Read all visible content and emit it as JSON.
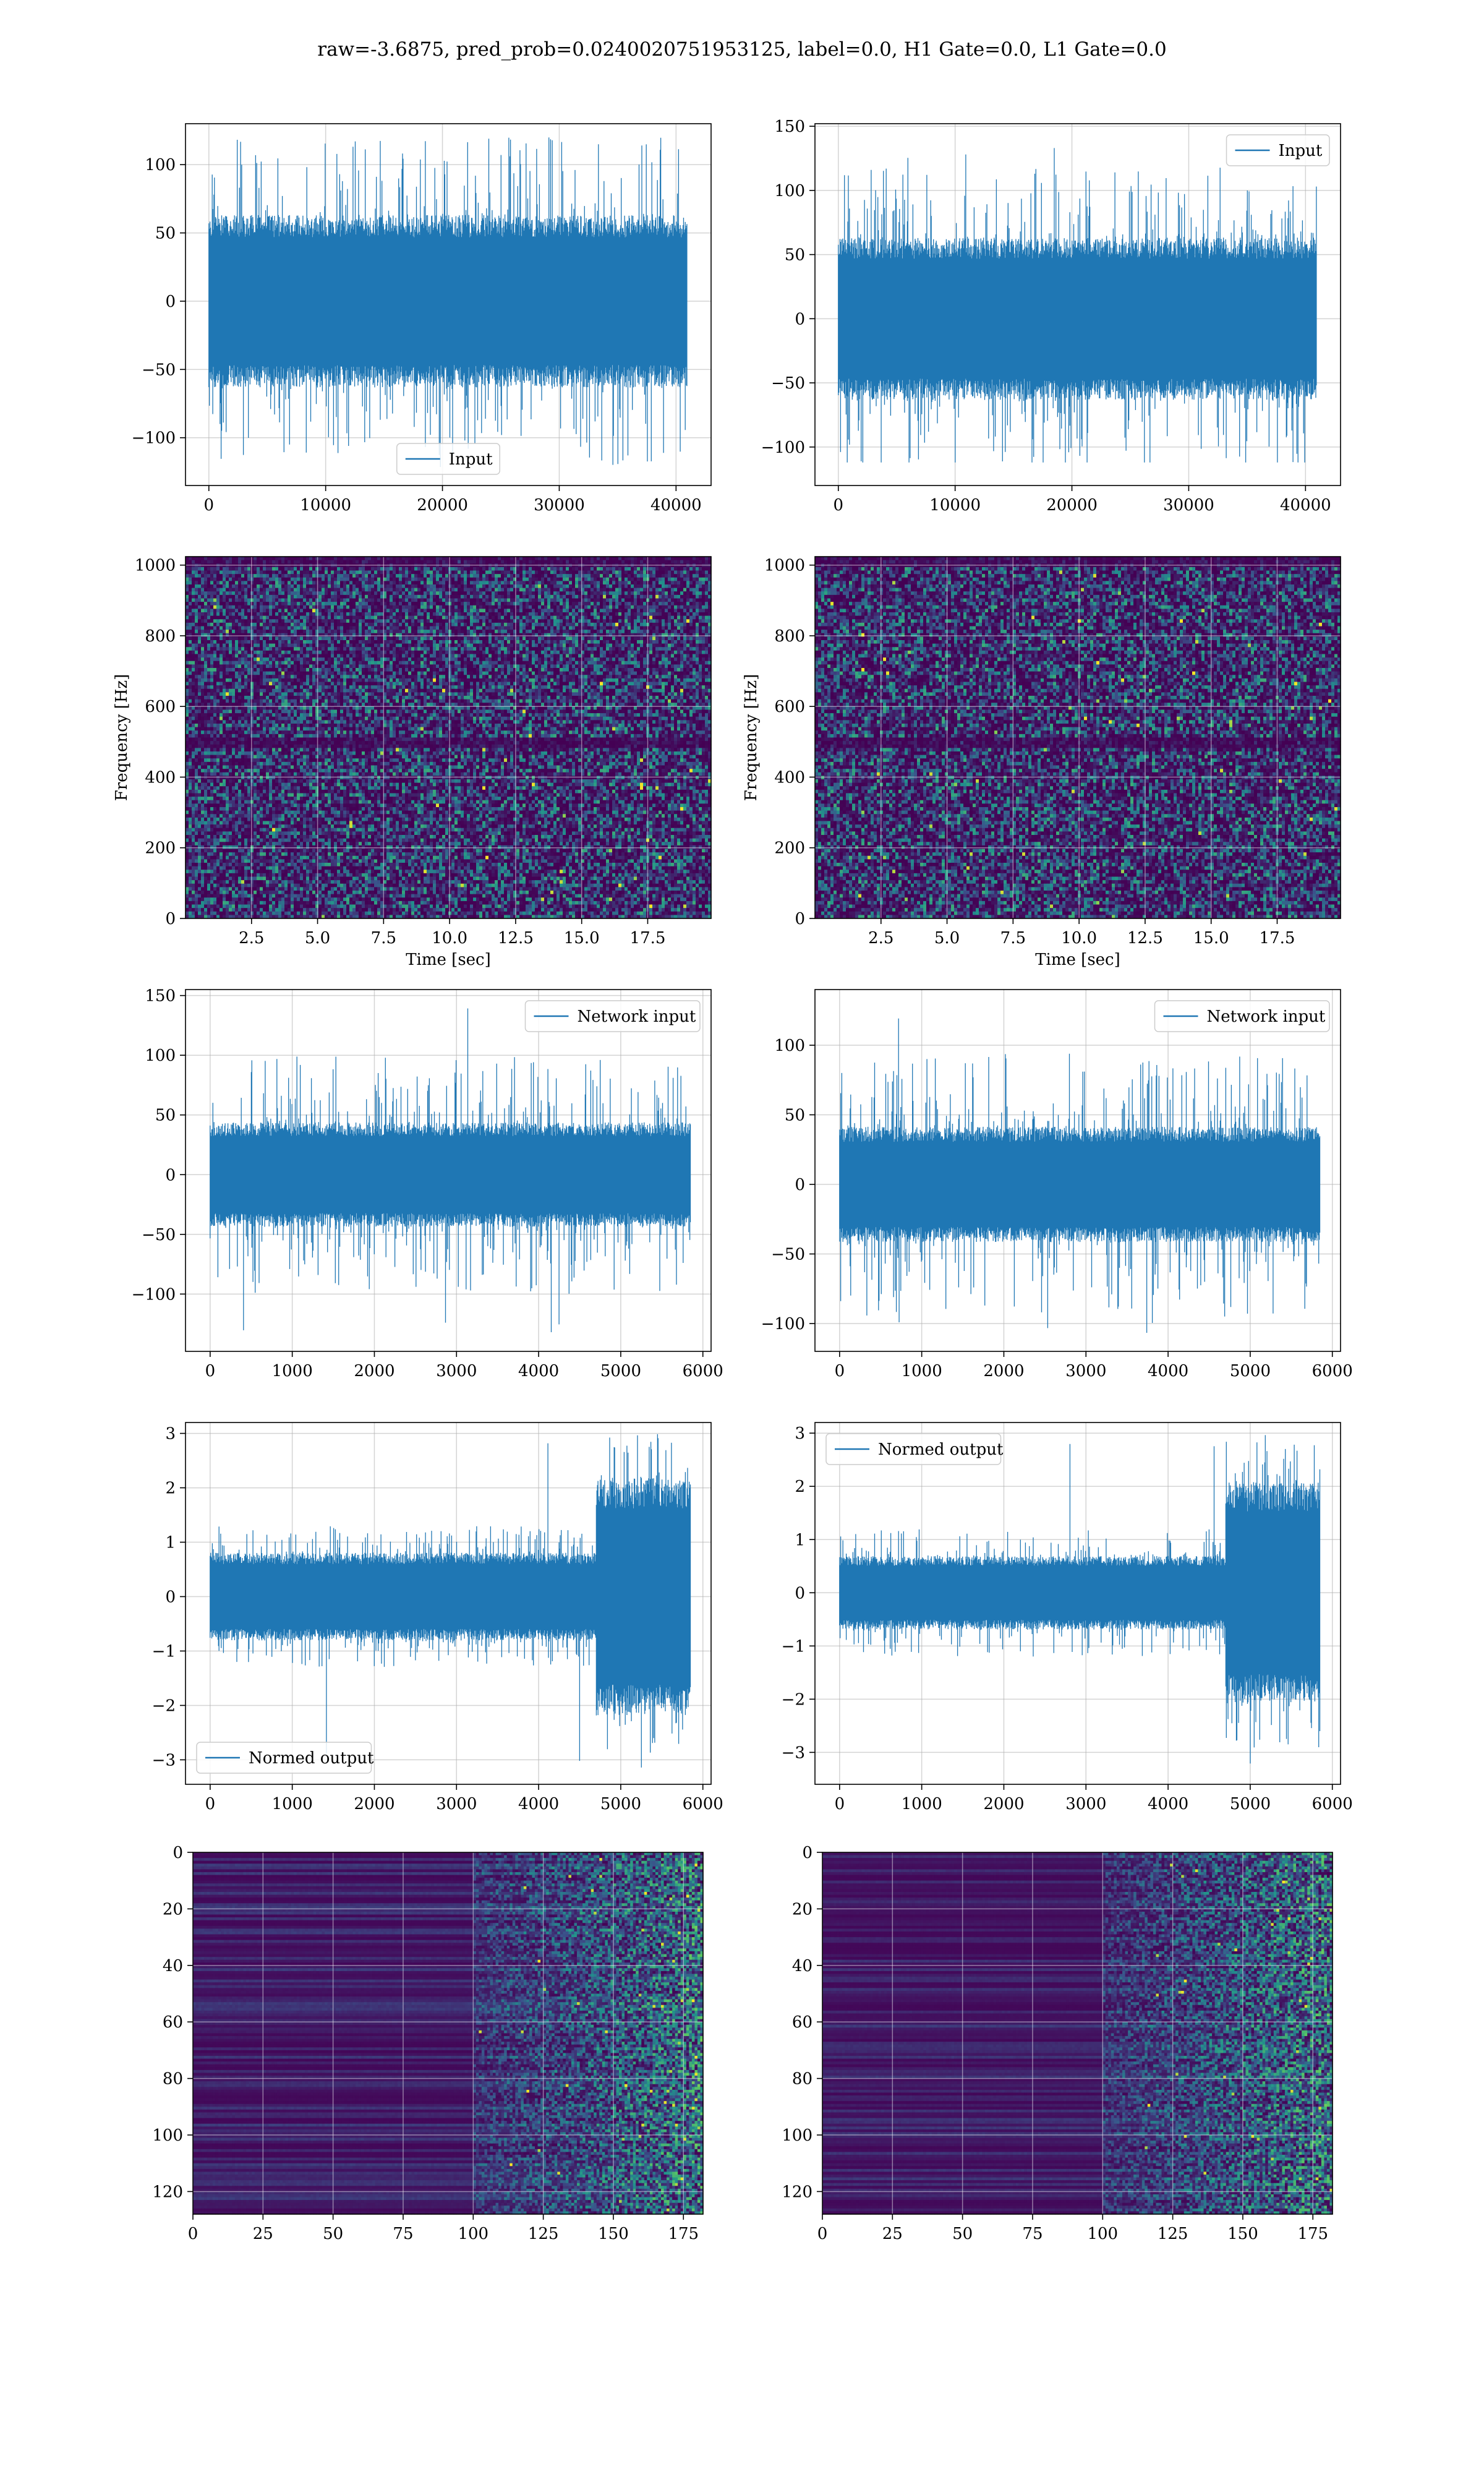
{
  "figure": {
    "suptitle": "raw=-3.6875, pred_prob=0.0240020751953125, label=0.0, H1 Gate=0.0, L1 Gate=0.0"
  },
  "colors": {
    "line": "#1f77b4",
    "viridis_low": "#440154",
    "viridis_mid": "#21918c",
    "viridis_high": "#fde725",
    "grid": "#b0b0b0",
    "axes": "#000000"
  },
  "chart_data": [
    {
      "type": "line",
      "name": "input-h1",
      "ylabel": "",
      "xlabel": "",
      "series": [
        {
          "name": "Input"
        }
      ],
      "legend_loc": "lower center",
      "xlim": [
        -2000,
        43000
      ],
      "ylim": [
        -135,
        130
      ],
      "xticks": [
        0,
        10000,
        20000,
        30000,
        40000
      ],
      "xticklabels": [
        "0",
        "10000",
        "20000",
        "30000",
        "40000"
      ],
      "yticks": [
        -100,
        -50,
        0,
        50,
        100
      ],
      "yticklabels": [
        "−100",
        "−50",
        "0",
        "50",
        "100"
      ],
      "signal": {
        "x_start": 0,
        "x_end": 40960,
        "core_amp": 55,
        "peak_amp": 120,
        "min": -122,
        "max": 122
      }
    },
    {
      "type": "line",
      "name": "input-l1",
      "ylabel": "",
      "xlabel": "",
      "series": [
        {
          "name": "Input"
        }
      ],
      "legend_loc": "upper right",
      "xlim": [
        -2000,
        43000
      ],
      "ylim": [
        -130,
        152
      ],
      "xticks": [
        0,
        10000,
        20000,
        30000,
        40000
      ],
      "xticklabels": [
        "0",
        "10000",
        "20000",
        "30000",
        "40000"
      ],
      "yticks": [
        -100,
        -50,
        0,
        50,
        100,
        150
      ],
      "yticklabels": [
        "−100",
        "−50",
        "0",
        "50",
        "100",
        "150"
      ],
      "signal": {
        "x_start": 0,
        "x_end": 40960,
        "core_amp": 55,
        "peak_amp": 118,
        "min": -112,
        "max": 138
      }
    },
    {
      "type": "heatmap",
      "name": "spectrogram-h1",
      "xlabel": "Time [sec]",
      "ylabel": "Frequency [Hz]",
      "xlim": [
        0,
        19.9
      ],
      "ylim": [
        0,
        1024
      ],
      "xticks": [
        2.5,
        5.0,
        7.5,
        10.0,
        12.5,
        15.0,
        17.5
      ],
      "xticklabels": [
        "2.5",
        "5.0",
        "7.5",
        "10.0",
        "12.5",
        "15.0",
        "17.5"
      ],
      "yticks": [
        0,
        200,
        400,
        600,
        800,
        1000
      ],
      "yticklabels": [
        "0",
        "200",
        "400",
        "600",
        "800",
        "1000"
      ],
      "dark_bands_hz": [
        505,
        1012
      ],
      "grid": true
    },
    {
      "type": "heatmap",
      "name": "spectrogram-l1",
      "xlabel": "Time [sec]",
      "ylabel": "Frequency [Hz]",
      "xlim": [
        0,
        19.9
      ],
      "ylim": [
        0,
        1024
      ],
      "xticks": [
        2.5,
        5.0,
        7.5,
        10.0,
        12.5,
        15.0,
        17.5
      ],
      "xticklabels": [
        "2.5",
        "5.0",
        "7.5",
        "10.0",
        "12.5",
        "15.0",
        "17.5"
      ],
      "yticks": [
        0,
        200,
        400,
        600,
        800,
        1000
      ],
      "yticklabels": [
        "0",
        "200",
        "400",
        "600",
        "800",
        "1000"
      ],
      "dark_bands_hz": [
        505,
        1012
      ],
      "grid": true
    },
    {
      "type": "line",
      "name": "network-input-h1",
      "ylabel": "",
      "xlabel": "",
      "series": [
        {
          "name": "Network input"
        }
      ],
      "legend_loc": "upper right",
      "xlim": [
        -300,
        6100
      ],
      "ylim": [
        -148,
        155
      ],
      "xticks": [
        0,
        1000,
        2000,
        3000,
        4000,
        5000,
        6000
      ],
      "xticklabels": [
        "0",
        "1000",
        "2000",
        "3000",
        "4000",
        "5000",
        "6000"
      ],
      "yticks": [
        -100,
        -50,
        0,
        50,
        100,
        150
      ],
      "yticklabels": [
        "−100",
        "−50",
        "0",
        "50",
        "100",
        "150"
      ],
      "signal": {
        "x_start": 0,
        "x_end": 5850,
        "core_amp": 38,
        "peak_amp": 100,
        "min": -135,
        "max": 140
      }
    },
    {
      "type": "line",
      "name": "network-input-l1",
      "ylabel": "",
      "xlabel": "",
      "series": [
        {
          "name": "Network input"
        }
      ],
      "legend_loc": "upper right",
      "xlim": [
        -300,
        6100
      ],
      "ylim": [
        -120,
        140
      ],
      "xticks": [
        0,
        1000,
        2000,
        3000,
        4000,
        5000,
        6000
      ],
      "xticklabels": [
        "0",
        "1000",
        "2000",
        "3000",
        "4000",
        "5000",
        "6000"
      ],
      "yticks": [
        -100,
        -50,
        0,
        50,
        100
      ],
      "yticklabels": [
        "−100",
        "−50",
        "0",
        "50",
        "100"
      ],
      "signal": {
        "x_start": 0,
        "x_end": 5850,
        "core_amp": 36,
        "peak_amp": 95,
        "min": -108,
        "max": 132
      }
    },
    {
      "type": "line",
      "name": "normed-output-h1",
      "ylabel": "",
      "xlabel": "",
      "series": [
        {
          "name": "Normed output"
        }
      ],
      "legend_loc": "lower left",
      "xlim": [
        -300,
        6100
      ],
      "ylim": [
        -3.45,
        3.2
      ],
      "xticks": [
        0,
        1000,
        2000,
        3000,
        4000,
        5000,
        6000
      ],
      "xticklabels": [
        "0",
        "1000",
        "2000",
        "3000",
        "4000",
        "5000",
        "6000"
      ],
      "yticks": [
        -3,
        -2,
        -1,
        0,
        1,
        2,
        3
      ],
      "yticklabels": [
        "−3",
        "−2",
        "−1",
        "0",
        "1",
        "2",
        "3"
      ],
      "signal": {
        "x_start": 0,
        "x_end": 5850,
        "core_amp": 0.7,
        "peak_amp": 1.3,
        "min": -3.2,
        "max": 3.0,
        "burst_start": 4700,
        "burst_amp": 1.9,
        "burst_peak": 3.0
      }
    },
    {
      "type": "line",
      "name": "normed-output-l1",
      "ylabel": "",
      "xlabel": "",
      "series": [
        {
          "name": "Normed output"
        }
      ],
      "legend_loc": "upper left",
      "xlim": [
        -300,
        6100
      ],
      "ylim": [
        -3.6,
        3.2
      ],
      "xticks": [
        0,
        1000,
        2000,
        3000,
        4000,
        5000,
        6000
      ],
      "xticklabels": [
        "0",
        "1000",
        "2000",
        "3000",
        "4000",
        "5000",
        "6000"
      ],
      "yticks": [
        -3,
        -2,
        -1,
        0,
        1,
        2,
        3
      ],
      "yticklabels": [
        "−3",
        "−2",
        "−1",
        "0",
        "1",
        "2",
        "3"
      ],
      "signal": {
        "x_start": 0,
        "x_end": 5850,
        "core_amp": 0.6,
        "peak_amp": 1.2,
        "min": -3.25,
        "max": 3.0,
        "burst_start": 4700,
        "burst_amp": 1.8,
        "burst_peak": 3.0
      }
    },
    {
      "type": "heatmap",
      "name": "embedding-h1",
      "xlabel": "",
      "ylabel": "",
      "xlim": [
        0,
        182
      ],
      "ylim": [
        128,
        0
      ],
      "xticks": [
        0,
        25,
        50,
        75,
        100,
        125,
        150,
        175
      ],
      "xticklabels": [
        "0",
        "25",
        "50",
        "75",
        "100",
        "125",
        "150",
        "175"
      ],
      "yticks": [
        0,
        20,
        40,
        60,
        80,
        100,
        120
      ],
      "yticklabels": [
        "0",
        "20",
        "40",
        "60",
        "80",
        "100",
        "120"
      ],
      "activity_onset_col": 100,
      "grid": true
    },
    {
      "type": "heatmap",
      "name": "embedding-l1",
      "xlabel": "",
      "ylabel": "",
      "xlim": [
        0,
        182
      ],
      "ylim": [
        128,
        0
      ],
      "xticks": [
        0,
        25,
        50,
        75,
        100,
        125,
        150,
        175
      ],
      "xticklabels": [
        "0",
        "25",
        "50",
        "75",
        "100",
        "125",
        "150",
        "175"
      ],
      "yticks": [
        0,
        20,
        40,
        60,
        80,
        100,
        120
      ],
      "yticklabels": [
        "0",
        "20",
        "40",
        "60",
        "80",
        "100",
        "120"
      ],
      "activity_onset_col": 100,
      "grid": true
    }
  ]
}
